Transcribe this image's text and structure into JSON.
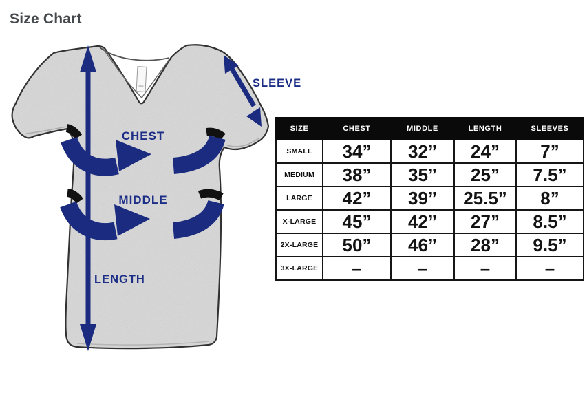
{
  "page": {
    "title": "Size Chart"
  },
  "diagram": {
    "description": "gray heather v-neck t-shirt with navy measurement arrows",
    "labels": {
      "chest": "CHEST",
      "middle": "MIDDLE",
      "length": "LENGTH",
      "sleeve": "SLEEVE"
    },
    "colors": {
      "arrow_navy": "#1c2e86",
      "shirt_gray": "#dcdcdc",
      "shirt_outline": "#2e2e2e",
      "band_back_black": "#111111"
    }
  },
  "size_table": {
    "columns": [
      "SIZE",
      "CHEST",
      "MIDDLE",
      "LENGTH",
      "SLEEVES"
    ],
    "rows": [
      {
        "size": "SMALL",
        "values": [
          "34”",
          "32”",
          "24”",
          "7”"
        ]
      },
      {
        "size": "MEDIUM",
        "values": [
          "38”",
          "35”",
          "25”",
          "7.5”"
        ]
      },
      {
        "size": "LARGE",
        "values": [
          "42”",
          "39”",
          "25.5”",
          "8”"
        ]
      },
      {
        "size": "X-LARGE",
        "values": [
          "45”",
          "42”",
          "27”",
          "8.5”"
        ]
      },
      {
        "size": "2X-LARGE",
        "values": [
          "50”",
          "46”",
          "28”",
          "9.5”"
        ]
      },
      {
        "size": "3X-LARGE",
        "values": [
          "–",
          "–",
          "–",
          "–"
        ]
      }
    ],
    "header_bg": "#0a0a0a",
    "header_text_color": "#ffffff"
  }
}
